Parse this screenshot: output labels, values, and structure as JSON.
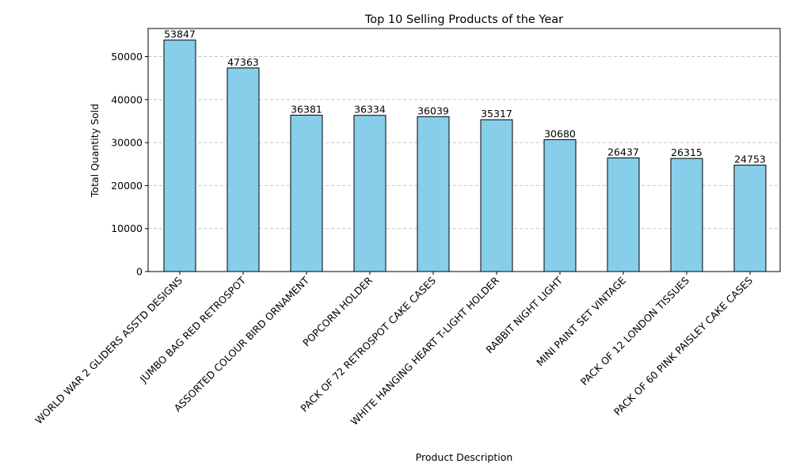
{
  "chart_data": {
    "type": "bar",
    "title": "Top 10 Selling Products of the Year",
    "xlabel": "Product Description",
    "ylabel": "Total Quantity Sold",
    "categories": [
      "WORLD WAR 2 GLIDERS ASSTD DESIGNS",
      "JUMBO BAG RED RETROSPOT",
      "ASSORTED COLOUR BIRD ORNAMENT",
      "POPCORN HOLDER",
      "PACK OF 72 RETROSPOT CAKE CASES",
      "WHITE HANGING HEART T-LIGHT HOLDER",
      "RABBIT NIGHT LIGHT",
      "MINI PAINT SET VINTAGE",
      "PACK OF 12 LONDON TISSUES",
      "PACK OF 60 PINK PAISLEY CAKE CASES"
    ],
    "values": [
      53847,
      47363,
      36381,
      36334,
      36039,
      35317,
      30680,
      26437,
      26315,
      24753
    ],
    "ylim": [
      0,
      56539
    ],
    "yticks": [
      0,
      10000,
      20000,
      30000,
      40000,
      50000
    ],
    "grid": "y-dashed",
    "bar_color": "#87ceeb",
    "bar_edge_color": "#000000",
    "grid_color": "#c7c7c7"
  }
}
